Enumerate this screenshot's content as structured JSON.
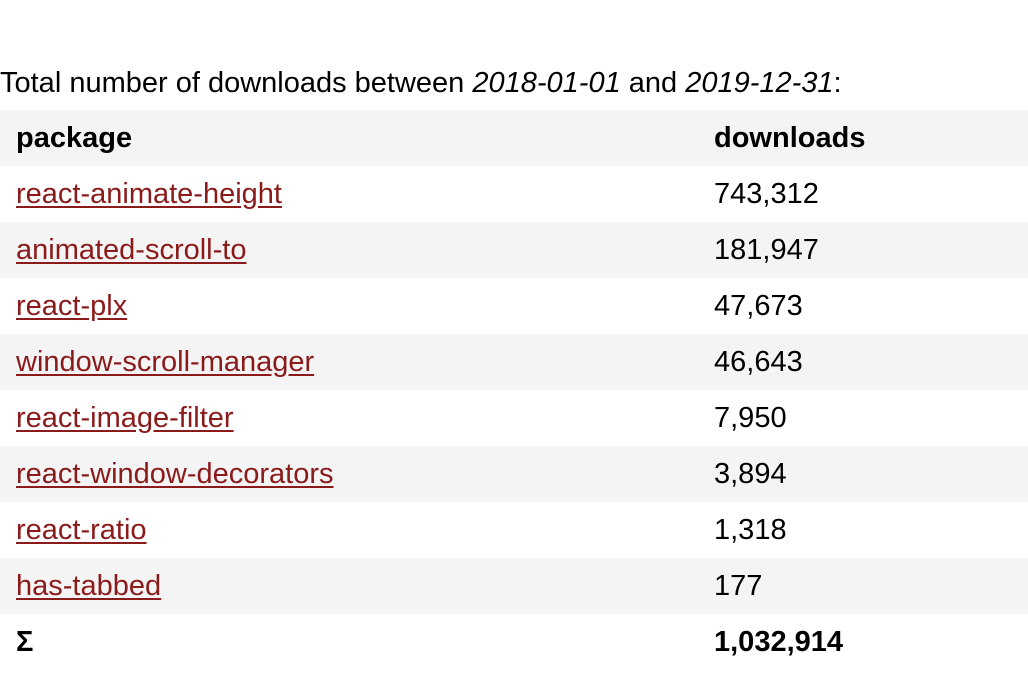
{
  "intro": {
    "prefix": "Total number of downloads between ",
    "start_date": "2018-01-01",
    "middle": " and ",
    "end_date": "2019-12-31",
    "suffix": ":"
  },
  "table": {
    "headers": {
      "package": "package",
      "downloads": "downloads"
    },
    "rows": [
      {
        "package": "react-animate-height",
        "downloads": "743,312"
      },
      {
        "package": "animated-scroll-to",
        "downloads": "181,947"
      },
      {
        "package": "react-plx",
        "downloads": "47,673"
      },
      {
        "package": "window-scroll-manager",
        "downloads": "46,643"
      },
      {
        "package": "react-image-filter",
        "downloads": "7,950"
      },
      {
        "package": "react-window-decorators",
        "downloads": "3,894"
      },
      {
        "package": "react-ratio",
        "downloads": "1,318"
      },
      {
        "package": "has-tabbed",
        "downloads": "177"
      }
    ],
    "total": {
      "label": "Σ",
      "value": "1,032,914"
    }
  },
  "colors": {
    "link": "#8b1a1a",
    "shaded_row": "#f4f4f4",
    "plain_row": "#ffffff",
    "text": "#000000"
  }
}
